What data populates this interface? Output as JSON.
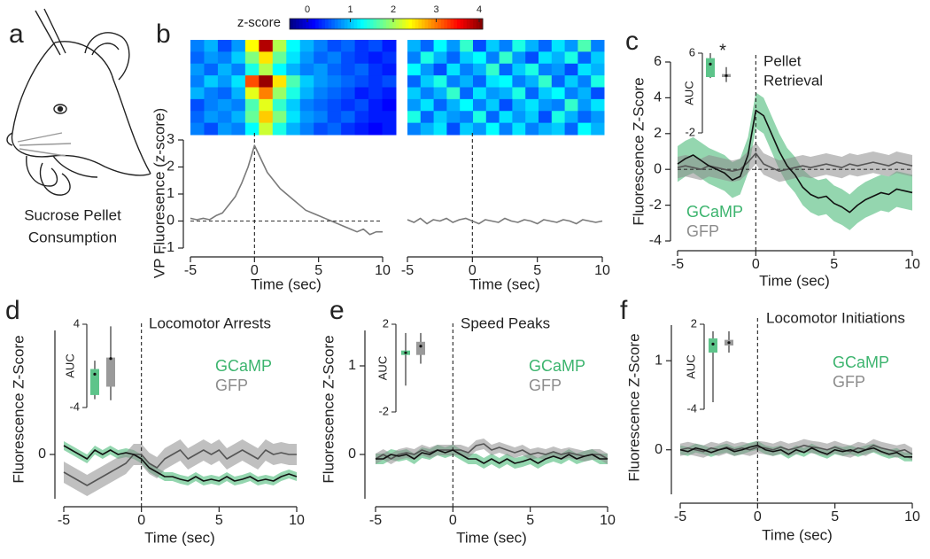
{
  "panel_labels": [
    "a",
    "b",
    "c",
    "d",
    "e",
    "f"
  ],
  "caption": [
    "Sucrose Pellet",
    "Consumption"
  ],
  "chart_data": [
    {
      "type": "heatmap",
      "colormap": "jet",
      "clim": [
        0,
        4
      ],
      "colorbar_title": "z-score",
      "colorbar_ticks": [
        0,
        1,
        2,
        3,
        4
      ],
      "values": [
        [
          1.0,
          1.2,
          0.8,
          1.1,
          2.5,
          3.8,
          2.2,
          1.5,
          1.2,
          1.0,
          0.8,
          0.9,
          0.7,
          0.8,
          0.6
        ],
        [
          0.9,
          1.1,
          1.0,
          1.3,
          2.0,
          2.6,
          1.9,
          1.4,
          1.1,
          0.9,
          1.0,
          0.8,
          0.7,
          0.6,
          0.7
        ],
        [
          1.1,
          0.9,
          1.2,
          1.0,
          1.6,
          2.2,
          1.5,
          1.2,
          1.0,
          1.1,
          0.9,
          0.8,
          0.9,
          0.7,
          0.6
        ],
        [
          1.0,
          1.3,
          1.1,
          1.4,
          3.2,
          3.9,
          2.6,
          1.8,
          1.3,
          1.1,
          1.0,
          0.9,
          0.8,
          0.7,
          0.8
        ],
        [
          1.2,
          1.0,
          0.9,
          1.2,
          2.4,
          3.0,
          2.1,
          1.6,
          1.2,
          1.0,
          0.9,
          0.8,
          0.6,
          0.7,
          0.6
        ],
        [
          0.8,
          1.0,
          1.1,
          1.0,
          1.8,
          2.4,
          1.7,
          1.3,
          1.0,
          0.9,
          0.8,
          0.7,
          0.8,
          0.6,
          0.5
        ],
        [
          0.9,
          1.1,
          1.0,
          1.2,
          1.9,
          2.7,
          2.0,
          1.4,
          1.1,
          1.0,
          0.8,
          0.9,
          0.7,
          0.6,
          0.6
        ],
        [
          1.0,
          0.8,
          1.1,
          1.0,
          1.5,
          2.3,
          1.6,
          1.2,
          1.0,
          0.8,
          0.9,
          0.7,
          0.6,
          0.5,
          0.6
        ]
      ]
    },
    {
      "type": "heatmap",
      "colormap": "jet",
      "clim": [
        0,
        4
      ],
      "values": [
        [
          1.2,
          0.9,
          1.5,
          1.1,
          1.7,
          0.8,
          1.3,
          1.0,
          1.6,
          1.2,
          0.9,
          1.4,
          1.1,
          1.8,
          1.0
        ],
        [
          1.0,
          1.6,
          1.2,
          0.9,
          1.3,
          1.5,
          1.0,
          1.7,
          1.1,
          0.8,
          1.4,
          1.2,
          1.6,
          0.9,
          1.3
        ],
        [
          1.5,
          1.1,
          0.8,
          1.4,
          1.0,
          1.2,
          1.7,
          0.9,
          1.3,
          1.6,
          1.0,
          1.1,
          0.8,
          1.4,
          1.2
        ],
        [
          0.9,
          1.3,
          1.6,
          1.0,
          1.2,
          0.9,
          1.4,
          1.5,
          1.0,
          1.2,
          1.7,
          0.9,
          1.3,
          1.0,
          1.6
        ],
        [
          1.3,
          1.0,
          1.2,
          1.7,
          0.9,
          1.4,
          1.1,
          1.2,
          1.6,
          0.9,
          1.3,
          1.5,
          1.0,
          1.2,
          0.8
        ],
        [
          1.1,
          1.4,
          0.9,
          1.2,
          1.5,
          1.0,
          1.3,
          0.8,
          1.2,
          1.4,
          1.1,
          1.0,
          1.7,
          1.1,
          1.4
        ],
        [
          1.6,
          0.9,
          1.3,
          1.1,
          1.0,
          1.6,
          0.9,
          1.4,
          1.1,
          1.3,
          0.8,
          1.6,
          1.2,
          0.9,
          1.1
        ],
        [
          1.0,
          1.2,
          1.4,
          0.8,
          1.3,
          1.1,
          1.5,
          1.0,
          1.4,
          1.0,
          1.2,
          1.3,
          0.9,
          1.5,
          1.2
        ]
      ]
    },
    {
      "type": "line",
      "xlabel": "Time (sec)",
      "ylabel": "VP Fluoresence (z-score)",
      "xlim": [
        -5,
        10
      ],
      "xticks": [
        -5,
        0,
        5,
        10
      ],
      "ylim": [
        -1,
        3
      ],
      "yticks": [
        -1,
        0,
        1,
        2,
        3
      ],
      "event_x": 0,
      "hline": 0,
      "x": [
        -5,
        -4.5,
        -4,
        -3.5,
        -3,
        -2.5,
        -2,
        -1.5,
        -1,
        -0.5,
        0,
        0.5,
        1,
        1.5,
        2,
        2.5,
        3,
        3.5,
        4,
        4.5,
        5,
        5.5,
        6,
        6.5,
        7,
        7.5,
        8,
        8.5,
        9,
        9.5,
        10
      ],
      "series": [
        {
          "line_color": "#7a7a7a",
          "values": [
            0.1,
            0.05,
            0.1,
            0.05,
            0.2,
            0.3,
            0.6,
            0.9,
            1.4,
            2.0,
            2.8,
            2.3,
            1.8,
            1.5,
            1.2,
            1.0,
            0.8,
            0.6,
            0.4,
            0.3,
            0.2,
            0.1,
            0.0,
            -0.1,
            -0.2,
            -0.3,
            -0.4,
            -0.3,
            -0.5,
            -0.4,
            -0.4
          ]
        }
      ]
    },
    {
      "type": "line",
      "xlabel": "Time (sec)",
      "xlim": [
        -5,
        10
      ],
      "xticks": [
        -5,
        0,
        5,
        10
      ],
      "ylim": [
        -1,
        3
      ],
      "event_x": 0,
      "x": [
        -5,
        -4.5,
        -4,
        -3.5,
        -3,
        -2.5,
        -2,
        -1.5,
        -1,
        -0.5,
        0,
        0.5,
        1,
        1.5,
        2,
        2.5,
        3,
        3.5,
        4,
        4.5,
        5,
        5.5,
        6,
        6.5,
        7,
        7.5,
        8,
        8.5,
        9,
        9.5,
        10
      ],
      "series": [
        {
          "line_color": "#7a7a7a",
          "values": [
            0.05,
            -0.05,
            0.1,
            -0.1,
            0.05,
            0,
            0.1,
            -0.05,
            0.05,
            0.1,
            0,
            -0.1,
            0.05,
            0,
            -0.05,
            0.1,
            0,
            -0.05,
            0.05,
            0,
            -0.1,
            0.05,
            0,
            -0.05,
            0.05,
            0,
            -0.1,
            0.05,
            0,
            -0.05,
            0
          ]
        }
      ]
    },
    {
      "type": "line",
      "xlabel": "Time (sec)",
      "ylabel": "Fluorescence Z-Score",
      "annotation": [
        "Pellet",
        "Retrieval"
      ],
      "xlim": [
        -5,
        10
      ],
      "xticks": [
        -5,
        0,
        5,
        10
      ],
      "ylim": [
        -4,
        6
      ],
      "yticks": [
        -4,
        -2,
        0,
        2,
        4,
        6
      ],
      "event_x": 0,
      "hline": 0,
      "x": [
        -5,
        -4.5,
        -4,
        -3.5,
        -3,
        -2.5,
        -2,
        -1.5,
        -1,
        -0.5,
        0,
        0.5,
        1,
        1.5,
        2,
        2.5,
        3,
        3.5,
        4,
        4.5,
        5,
        5.5,
        6,
        6.5,
        7,
        7.5,
        8,
        8.5,
        9,
        9.5,
        10
      ],
      "series": [
        {
          "name": "GCaMP",
          "color": "#3cb46e",
          "line_color": "#111111",
          "error": 1.0,
          "values": [
            0.3,
            0.6,
            0.8,
            0.5,
            0.2,
            0.0,
            -0.2,
            -0.6,
            -0.4,
            0.8,
            3.3,
            3.0,
            2.0,
            1.0,
            0.2,
            -0.3,
            -1.0,
            -1.4,
            -1.6,
            -1.5,
            -1.9,
            -2.1,
            -2.4,
            -2.0,
            -1.7,
            -1.5,
            -1.3,
            -1.4,
            -1.1,
            -1.2,
            -1.3
          ]
        },
        {
          "name": "GFP",
          "color": "#8c8c8c",
          "line_color": "#555555",
          "error": 0.6,
          "values": [
            0.1,
            0.2,
            0.1,
            0,
            0.2,
            0.1,
            0,
            -0.1,
            0,
            0.4,
            0.9,
            0.3,
            0.1,
            -0.1,
            0,
            0.1,
            0.2,
            0.1,
            0.2,
            0.3,
            0.2,
            0.1,
            0.3,
            0.2,
            0.3,
            0.4,
            0.3,
            0.2,
            0.4,
            0.3,
            0.2
          ]
        }
      ],
      "inset": {
        "ylabel": "AUC",
        "ylim": [
          -2,
          6
        ],
        "yticks": [
          -2,
          6
        ],
        "significance": "*",
        "boxes": [
          {
            "color": "#5dc48a",
            "whislo": 3.5,
            "q1": 3.6,
            "mean": 4.9,
            "q3": 5.5,
            "whishi": 6
          },
          {
            "color": "#9a9a9a",
            "whislo": 3.1,
            "q1": 3.6,
            "mean": 3.75,
            "q3": 3.9,
            "whishi": 4.6
          }
        ]
      }
    },
    {
      "type": "line",
      "xlabel": "Time (sec)",
      "ylabel": "Fluorescence Z-Score",
      "annotation": [
        "Locomotor Arrests"
      ],
      "xlim": [
        -5,
        10
      ],
      "xticks": [
        -5,
        0,
        5,
        10
      ],
      "ylim": [
        -0.5,
        1.4
      ],
      "yticks": [
        0
      ],
      "event_x": 0,
      "x": [
        -5,
        -4.5,
        -4,
        -3.5,
        -3,
        -2.5,
        -2,
        -1.5,
        -1,
        -0.5,
        0,
        0.5,
        1,
        1.5,
        2,
        2.5,
        3,
        3.5,
        4,
        4.5,
        5,
        5.5,
        6,
        6.5,
        7,
        7.5,
        8,
        8.5,
        9,
        9.5,
        10
      ],
      "series": [
        {
          "name": "GCaMP",
          "color": "#3cb46e",
          "line_color": "#111111",
          "error": 0.05,
          "values": [
            0.1,
            0.05,
            0.0,
            -0.05,
            0.05,
            0.0,
            0.05,
            0.0,
            0.02,
            0.0,
            -0.05,
            -0.15,
            -0.2,
            -0.25,
            -0.25,
            -0.28,
            -0.3,
            -0.25,
            -0.3,
            -0.28,
            -0.3,
            -0.25,
            -0.3,
            -0.28,
            -0.25,
            -0.3,
            -0.28,
            -0.3,
            -0.25,
            -0.22,
            -0.25
          ]
        },
        {
          "name": "GFP",
          "color": "#8c8c8c",
          "line_color": "#555555",
          "error": 0.12,
          "values": [
            -0.2,
            -0.25,
            -0.3,
            -0.35,
            -0.3,
            -0.25,
            -0.2,
            -0.15,
            -0.1,
            0,
            0.0,
            -0.1,
            -0.15,
            -0.05,
            0.0,
            0.05,
            -0.05,
            0.0,
            0.05,
            0.0,
            0.05,
            -0.05,
            0.0,
            0.05,
            0.0,
            -0.05,
            0.05,
            0.0,
            0.02,
            0.0,
            0.0
          ]
        }
      ],
      "inset": {
        "ylabel": "AUC",
        "ylim": [
          -4,
          4
        ],
        "yticks": [
          -4,
          4
        ],
        "boxes": [
          {
            "color": "#5dc48a",
            "whislo": -3.2,
            "q1": -2.8,
            "mean": -0.8,
            "q3": -0.3,
            "whishi": 0.5
          },
          {
            "color": "#9a9a9a",
            "whislo": -3.3,
            "q1": -2,
            "mean": 0.7,
            "q3": 0.8,
            "whishi": 3.8
          }
        ]
      }
    },
    {
      "type": "line",
      "xlabel": "Time (sec)",
      "ylabel": "Fluorescence Z-Score",
      "annotation": [
        "Speed Peaks"
      ],
      "xlim": [
        -5,
        10
      ],
      "xticks": [
        -5,
        0,
        5,
        10
      ],
      "ylim": [
        -0.5,
        1.4
      ],
      "yticks": [
        0,
        1
      ],
      "event_x": 0,
      "x": [
        -5,
        -4.5,
        -4,
        -3.5,
        -3,
        -2.5,
        -2,
        -1.5,
        -1,
        -0.5,
        0,
        0.5,
        1,
        1.5,
        2,
        2.5,
        3,
        3.5,
        4,
        4.5,
        5,
        5.5,
        6,
        6.5,
        7,
        7.5,
        8,
        8.5,
        9,
        9.5,
        10
      ],
      "series": [
        {
          "name": "GCaMP",
          "color": "#3cb46e",
          "line_color": "#111111",
          "error": 0.06,
          "values": [
            -0.05,
            -0.05,
            0,
            -0.02,
            0,
            -0.05,
            0.02,
            0,
            0.05,
            0.02,
            0.05,
            0,
            -0.05,
            -0.05,
            -0.1,
            -0.05,
            -0.1,
            -0.05,
            -0.1,
            -0.08,
            -0.05,
            -0.1,
            -0.05,
            -0.02,
            -0.05,
            0.0,
            -0.05,
            -0.02,
            0,
            -0.05,
            -0.05
          ]
        },
        {
          "name": "GFP",
          "color": "#8c8c8c",
          "line_color": "#555555",
          "error": 0.06,
          "values": [
            -0.05,
            0,
            -0.05,
            0,
            0.02,
            0,
            0.05,
            0.02,
            0.05,
            0.05,
            0.05,
            0.05,
            0.02,
            0.1,
            0.12,
            0.05,
            0.08,
            0.05,
            0.02,
            0.05,
            0,
            0.02,
            0.0,
            0.03,
            0.0,
            0.02,
            0.0,
            -0.02,
            0,
            0.0,
            -0.05
          ]
        }
      ],
      "inset": {
        "ylabel": "AUC",
        "ylim": [
          -2,
          2
        ],
        "yticks": [
          -2,
          2
        ],
        "boxes": [
          {
            "color": "#5dc48a",
            "whislo": -0.8,
            "q1": 0.6,
            "mean": 0.7,
            "q3": 0.8,
            "whishi": 1.6
          },
          {
            "color": "#9a9a9a",
            "whislo": 0.2,
            "q1": 0.6,
            "mean": 1.0,
            "q3": 1.2,
            "whishi": 1.6
          }
        ]
      }
    },
    {
      "type": "line",
      "xlabel": "Time (sec)",
      "ylabel": "Fluorescence Z-Score",
      "annotation": [
        "Locomotor Initiations"
      ],
      "xlim": [
        -5,
        10
      ],
      "xticks": [
        -5,
        0,
        5,
        10
      ],
      "ylim": [
        -0.5,
        1.4
      ],
      "yticks": [
        0,
        1
      ],
      "event_x": 0,
      "x": [
        -5,
        -4.5,
        -4,
        -3.5,
        -3,
        -2.5,
        -2,
        -1.5,
        -1,
        -0.5,
        0,
        0.5,
        1,
        1.5,
        2,
        2.5,
        3,
        3.5,
        4,
        4.5,
        5,
        5.5,
        6,
        6.5,
        7,
        7.5,
        8,
        8.5,
        9,
        9.5,
        10
      ],
      "series": [
        {
          "name": "GCaMP",
          "color": "#3cb46e",
          "line_color": "#111111",
          "error": 0.05,
          "values": [
            0,
            -0.02,
            0.02,
            0,
            -0.03,
            0,
            0.02,
            -0.02,
            0,
            0.03,
            0.05,
            0,
            -0.02,
            0,
            -0.05,
            0,
            -0.03,
            0.02,
            -0.02,
            -0.05,
            0,
            -0.02,
            0,
            -0.03,
            0,
            0.02,
            -0.02,
            -0.05,
            -0.03,
            -0.08,
            -0.08
          ]
        },
        {
          "name": "GFP",
          "color": "#8c8c8c",
          "line_color": "#555555",
          "error": 0.07,
          "values": [
            0,
            0.02,
            0,
            -0.02,
            0.02,
            0,
            0.03,
            0,
            0.02,
            0,
            0.03,
            0.02,
            0,
            0.03,
            0,
            0.02,
            0.05,
            0.03,
            0.02,
            0,
            0.03,
            0,
            -0.02,
            0.02,
            0,
            0.05,
            0.02,
            0,
            -0.02,
            0,
            -0.05
          ]
        }
      ],
      "inset": {
        "ylabel": "AUC",
        "ylim": [
          -4,
          2
        ],
        "yticks": [
          -4,
          2
        ],
        "boxes": [
          {
            "color": "#5dc48a",
            "whislo": -3.5,
            "q1": 0,
            "mean": 0.6,
            "q3": 1,
            "whishi": 1.5
          },
          {
            "color": "#9a9a9a",
            "whislo": 0,
            "q1": 0.5,
            "mean": 0.7,
            "q3": 0.9,
            "whishi": 1.5
          }
        ]
      }
    }
  ]
}
